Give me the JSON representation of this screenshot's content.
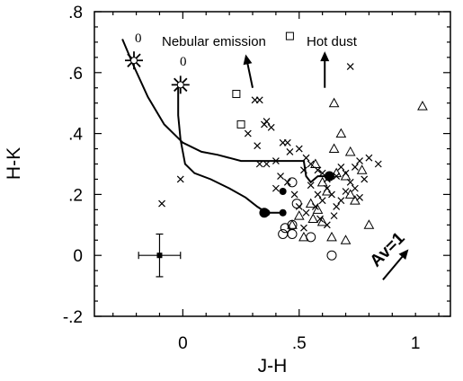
{
  "chart_data": {
    "type": "scatter",
    "title": "",
    "xlabel": "J-H",
    "ylabel": "H-K",
    "xlim": [
      -0.38,
      1.15
    ],
    "ylim": [
      -0.2,
      0.8
    ],
    "x_ticks": [
      {
        "value": 0,
        "label": "0"
      },
      {
        "value": 0.5,
        "label": ".5"
      },
      {
        "value": 1,
        "label": "1"
      }
    ],
    "y_ticks": [
      {
        "value": 0.8,
        "label": ".8"
      },
      {
        "value": 0.6,
        "label": ".6"
      },
      {
        "value": 0.4,
        "label": ".4"
      },
      {
        "value": 0.2,
        "label": ".2"
      },
      {
        "value": 0,
        "label": "0"
      },
      {
        "value": -0.2,
        "label": "-.2"
      }
    ],
    "grid": false,
    "annotations": {
      "nebular_emission": "Nebular emission",
      "hot_dust": "Hot dust",
      "extinction_label": "Av=1",
      "star_label_1": "0",
      "star_label_2": "0"
    },
    "series": [
      {
        "marker": "cross",
        "points": [
          [
            -0.09,
            0.17
          ],
          [
            -0.01,
            0.25
          ],
          [
            0.31,
            0.51
          ],
          [
            0.33,
            0.51
          ],
          [
            0.72,
            0.62
          ],
          [
            0.35,
            0.43
          ],
          [
            0.36,
            0.44
          ],
          [
            0.38,
            0.42
          ],
          [
            0.28,
            0.4
          ],
          [
            0.32,
            0.36
          ],
          [
            0.33,
            0.3
          ],
          [
            0.36,
            0.3
          ],
          [
            0.4,
            0.31
          ],
          [
            0.43,
            0.37
          ],
          [
            0.45,
            0.37
          ],
          [
            0.46,
            0.34
          ],
          [
            0.5,
            0.35
          ],
          [
            0.53,
            0.32
          ],
          [
            0.55,
            0.3
          ],
          [
            0.58,
            0.28
          ],
          [
            0.6,
            0.27
          ],
          [
            0.62,
            0.25
          ],
          [
            0.66,
            0.26
          ],
          [
            0.68,
            0.29
          ],
          [
            0.7,
            0.27
          ],
          [
            0.74,
            0.29
          ],
          [
            0.76,
            0.31
          ],
          [
            0.8,
            0.32
          ],
          [
            0.84,
            0.3
          ],
          [
            0.52,
            0.28
          ],
          [
            0.55,
            0.23
          ],
          [
            0.58,
            0.2
          ],
          [
            0.6,
            0.18
          ],
          [
            0.62,
            0.22
          ],
          [
            0.64,
            0.2
          ],
          [
            0.66,
            0.16
          ],
          [
            0.68,
            0.18
          ],
          [
            0.7,
            0.21
          ],
          [
            0.72,
            0.24
          ],
          [
            0.74,
            0.22
          ],
          [
            0.76,
            0.19
          ],
          [
            0.78,
            0.25
          ],
          [
            0.48,
            0.2
          ],
          [
            0.5,
            0.16
          ],
          [
            0.53,
            0.14
          ],
          [
            0.57,
            0.16
          ],
          [
            0.59,
            0.12
          ],
          [
            0.62,
            0.1
          ],
          [
            0.65,
            0.13
          ],
          [
            0.52,
            0.09
          ],
          [
            0.42,
            0.26
          ],
          [
            0.45,
            0.24
          ],
          [
            0.4,
            0.22
          ]
        ]
      },
      {
        "marker": "triangle",
        "points": [
          [
            0.65,
            0.5
          ],
          [
            1.03,
            0.49
          ],
          [
            0.68,
            0.4
          ],
          [
            0.65,
            0.35
          ],
          [
            0.57,
            0.3
          ],
          [
            0.72,
            0.34
          ],
          [
            0.66,
            0.27
          ],
          [
            0.7,
            0.26
          ],
          [
            0.77,
            0.28
          ],
          [
            0.6,
            0.24
          ],
          [
            0.62,
            0.21
          ],
          [
            0.72,
            0.2
          ],
          [
            0.55,
            0.17
          ],
          [
            0.58,
            0.15
          ],
          [
            0.74,
            0.18
          ],
          [
            0.56,
            0.12
          ],
          [
            0.6,
            0.11
          ],
          [
            0.64,
            0.06
          ],
          [
            0.8,
            0.1
          ],
          [
            0.5,
            0.13
          ],
          [
            0.47,
            0.1
          ],
          [
            0.52,
            0.06
          ],
          [
            0.7,
            0.05
          ]
        ]
      },
      {
        "marker": "square",
        "points": [
          [
            0.23,
            0.53
          ],
          [
            0.25,
            0.43
          ],
          [
            0.46,
            0.72
          ]
        ]
      },
      {
        "marker": "circle",
        "points": [
          [
            0.47,
            0.24
          ],
          [
            0.49,
            0.17
          ],
          [
            0.47,
            0.1
          ],
          [
            0.44,
            0.09
          ],
          [
            0.47,
            0.07
          ],
          [
            0.55,
            0.06
          ],
          [
            0.64,
            0.0
          ],
          [
            0.43,
            0.07
          ]
        ]
      },
      {
        "marker": "filled-circle",
        "points": [
          [
            0.35,
            0.14
          ],
          [
            0.63,
            0.26
          ]
        ]
      },
      {
        "marker": "filled-circle-small",
        "points": [
          [
            0.43,
            0.14
          ],
          [
            0.43,
            0.21
          ],
          [
            0.36,
            0.14
          ]
        ]
      }
    ],
    "tracks": [
      {
        "name": "track-upper",
        "points": [
          [
            -0.26,
            0.71
          ],
          [
            -0.21,
            0.62
          ],
          [
            -0.15,
            0.52
          ],
          [
            -0.08,
            0.43
          ],
          [
            0.0,
            0.37
          ],
          [
            0.08,
            0.34
          ],
          [
            0.15,
            0.33
          ],
          [
            0.25,
            0.31
          ],
          [
            0.3,
            0.31
          ],
          [
            0.4,
            0.31
          ],
          [
            0.52,
            0.31
          ],
          [
            0.53,
            0.26
          ],
          [
            0.55,
            0.24
          ],
          [
            0.58,
            0.26
          ],
          [
            0.63,
            0.26
          ]
        ]
      },
      {
        "name": "track-lower",
        "points": [
          [
            -0.02,
            0.55
          ],
          [
            -0.02,
            0.46
          ],
          [
            -0.01,
            0.38
          ],
          [
            0.01,
            0.3
          ],
          [
            0.05,
            0.27
          ],
          [
            0.12,
            0.25
          ],
          [
            0.2,
            0.22
          ],
          [
            0.27,
            0.19
          ],
          [
            0.32,
            0.16
          ],
          [
            0.36,
            0.14
          ],
          [
            0.4,
            0.14
          ],
          [
            0.43,
            0.14
          ]
        ]
      }
    ],
    "stars": [
      [
        -0.21,
        0.64
      ],
      [
        -0.01,
        0.56
      ]
    ],
    "error_bar": {
      "x": -0.1,
      "y": 0.0,
      "xerr": 0.09,
      "yerr": 0.07
    },
    "vectors": [
      {
        "name": "nebular-emission-arrow",
        "from": [
          0.3,
          0.55
        ],
        "to": [
          0.27,
          0.66
        ]
      },
      {
        "name": "hot-dust-arrow",
        "from": [
          0.61,
          0.55
        ],
        "to": [
          0.61,
          0.67
        ]
      },
      {
        "name": "extinction-arrow",
        "from": [
          0.86,
          -0.08
        ],
        "to": [
          0.97,
          0.02
        ]
      }
    ]
  }
}
